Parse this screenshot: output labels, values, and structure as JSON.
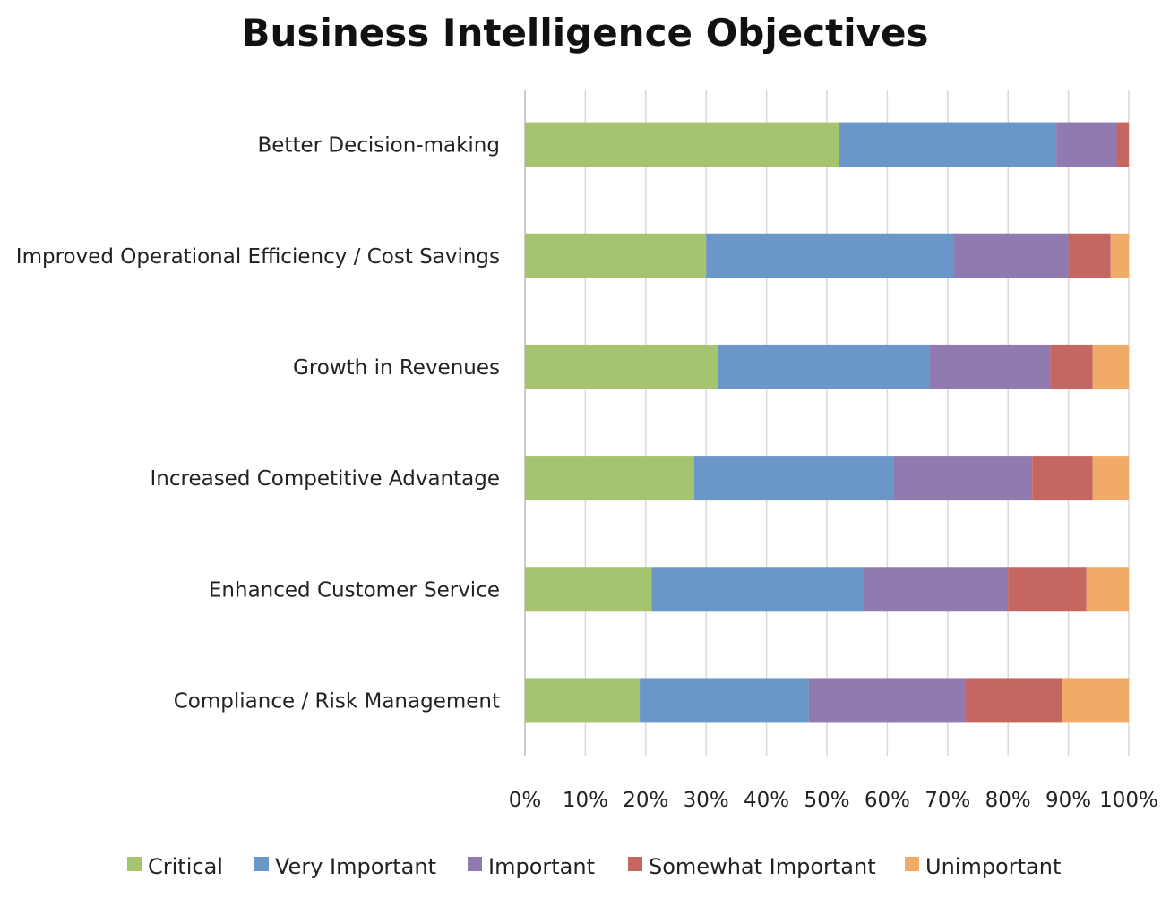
{
  "chart_data": {
    "type": "bar",
    "orientation": "horizontal",
    "stacked": "percent",
    "title": "Business Intelligence Objectives",
    "categories": [
      "Better Decision-making",
      "Improved Operational Efficiency / Cost Savings",
      "Growth in Revenues",
      "Increased Competitive Advantage",
      "Enhanced Customer Service",
      "Compliance / Risk Management"
    ],
    "series": [
      {
        "name": "Critical",
        "color": "#A6C36F",
        "values": [
          52,
          30,
          32,
          28,
          21,
          19
        ]
      },
      {
        "name": "Very Important",
        "color": "#6A96C8",
        "values": [
          36,
          41,
          35,
          33,
          35,
          28
        ]
      },
      {
        "name": "Important",
        "color": "#907AB0",
        "values": [
          10,
          19,
          20,
          23,
          24,
          26
        ]
      },
      {
        "name": "Somewhat Important",
        "color": "#C66661",
        "values": [
          2,
          7,
          7,
          10,
          13,
          16
        ]
      },
      {
        "name": "Unimportant",
        "color": "#F0AB68",
        "values": [
          0,
          3,
          6,
          6,
          7,
          11
        ]
      }
    ],
    "xlim": [
      0,
      100
    ],
    "xticks": [
      "0%",
      "10%",
      "20%",
      "30%",
      "40%",
      "50%",
      "60%",
      "70%",
      "80%",
      "90%",
      "100%"
    ],
    "grid": "vertical",
    "legend": "bottom"
  }
}
